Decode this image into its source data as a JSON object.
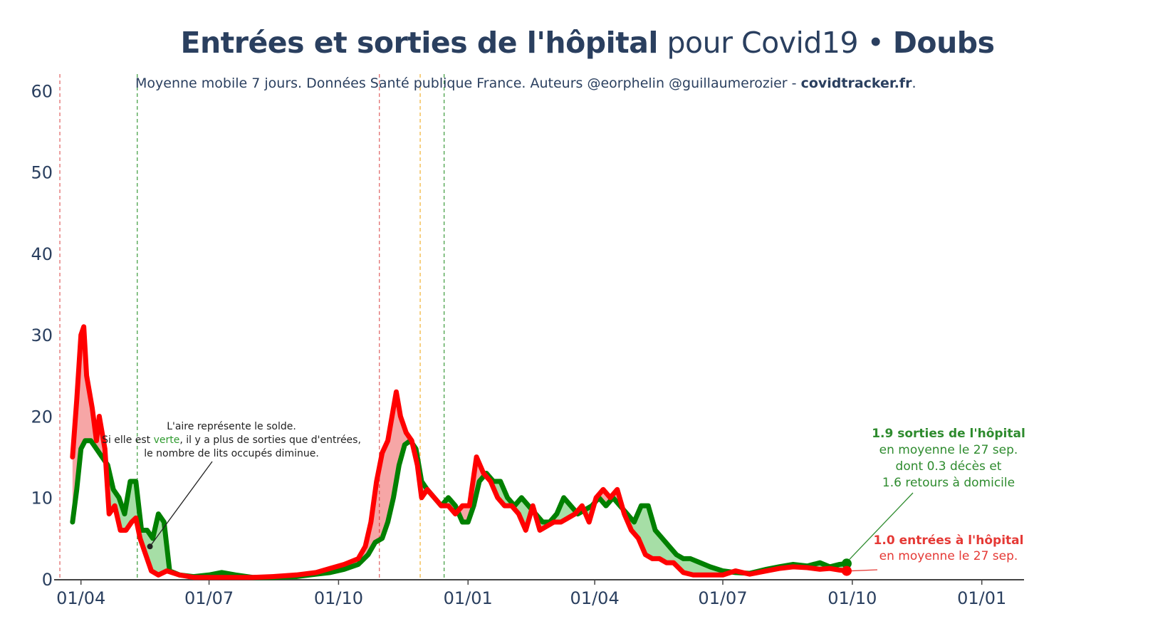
{
  "title": {
    "bold_part": "Entrées et sorties de l'hôpital",
    "light_part": "pour Covid19",
    "separator": "•",
    "place": "Doubs"
  },
  "subtitle": {
    "text": "Moyenne mobile 7 jours. Données Santé publique France. Auteurs @eorphelin @guillaumerozier - ",
    "link": "covidtracker.fr",
    "end": "."
  },
  "note": {
    "line1": "L'aire représente le solde.",
    "line2_a": "Si elle est ",
    "line2_green": "verte",
    "line2_b": ", il y a plus de sorties que d'entrées,",
    "line3": "le nombre de lits occupés diminue."
  },
  "annotation_sorties": {
    "bold": "1.9 sorties de l'hôpital",
    "line2": "en moyenne le 27 sep.",
    "line3": "dont 0.3 décès et",
    "line4": "1.6 retours à domicile"
  },
  "annotation_entrees": {
    "bold": "1.0 entrées à l'hôpital",
    "line2": "en moyenne le 27 sep."
  },
  "colors": {
    "sorties": "#008000",
    "entrees": "#ff0000",
    "fill_green": "rgba(0,160,0,0.35)",
    "fill_red": "rgba(230,0,0,0.35)",
    "text": "#2a3f5f",
    "vline_red": "#e06060",
    "vline_green": "#3a9a3a",
    "vline_orange": "#f0b030"
  },
  "chart_data": {
    "type": "line",
    "x_unit": "date",
    "y_range": [
      0,
      61
    ],
    "y_ticks": [
      0,
      10,
      20,
      30,
      40,
      50,
      60
    ],
    "x_range": [
      "2020-03-19",
      "2022-01-31"
    ],
    "x_ticks": [
      {
        "date": "2020-04-01",
        "label": "01/04"
      },
      {
        "date": "2020-07-01",
        "label": "01/07"
      },
      {
        "date": "2020-10-01",
        "label": "01/10"
      },
      {
        "date": "2021-01-01",
        "label": "01/01"
      },
      {
        "date": "2021-04-01",
        "label": "01/04"
      },
      {
        "date": "2021-07-01",
        "label": "01/07"
      },
      {
        "date": "2021-10-01",
        "label": "01/10"
      },
      {
        "date": "2022-01-01",
        "label": "01/01"
      }
    ],
    "vertical_lines": [
      {
        "date": "2020-03-17",
        "color": "red"
      },
      {
        "date": "2020-05-11",
        "color": "green"
      },
      {
        "date": "2020-10-30",
        "color": "red"
      },
      {
        "date": "2020-11-28",
        "color": "orange"
      },
      {
        "date": "2020-12-15",
        "color": "green"
      }
    ],
    "series": [
      {
        "key": "sorties",
        "points": [
          [
            "2020-03-26",
            7
          ],
          [
            "2020-03-29",
            11
          ],
          [
            "2020-04-01",
            16
          ],
          [
            "2020-04-04",
            17
          ],
          [
            "2020-04-08",
            17
          ],
          [
            "2020-04-12",
            16
          ],
          [
            "2020-04-16",
            15
          ],
          [
            "2020-04-20",
            14
          ],
          [
            "2020-04-24",
            11
          ],
          [
            "2020-04-28",
            10
          ],
          [
            "2020-05-02",
            8
          ],
          [
            "2020-05-06",
            12
          ],
          [
            "2020-05-10",
            12
          ],
          [
            "2020-05-14",
            6
          ],
          [
            "2020-05-18",
            6
          ],
          [
            "2020-05-22",
            5
          ],
          [
            "2020-05-26",
            8
          ],
          [
            "2020-05-30",
            7
          ],
          [
            "2020-06-03",
            1
          ],
          [
            "2020-06-10",
            0.5
          ],
          [
            "2020-06-20",
            0.3
          ],
          [
            "2020-07-01",
            0.5
          ],
          [
            "2020-07-10",
            0.8
          ],
          [
            "2020-07-20",
            0.5
          ],
          [
            "2020-08-01",
            0.2
          ],
          [
            "2020-08-15",
            0.2
          ],
          [
            "2020-09-01",
            0.3
          ],
          [
            "2020-09-15",
            0.6
          ],
          [
            "2020-09-25",
            0.8
          ],
          [
            "2020-10-05",
            1.2
          ],
          [
            "2020-10-15",
            1.8
          ],
          [
            "2020-10-22",
            3
          ],
          [
            "2020-10-27",
            4.5
          ],
          [
            "2020-11-01",
            5
          ],
          [
            "2020-11-05",
            7
          ],
          [
            "2020-11-09",
            10
          ],
          [
            "2020-11-13",
            14
          ],
          [
            "2020-11-17",
            16.5
          ],
          [
            "2020-11-21",
            17
          ],
          [
            "2020-11-25",
            16
          ],
          [
            "2020-11-29",
            12
          ],
          [
            "2020-12-03",
            11
          ],
          [
            "2020-12-08",
            10
          ],
          [
            "2020-12-13",
            9
          ],
          [
            "2020-12-18",
            10
          ],
          [
            "2020-12-23",
            9
          ],
          [
            "2020-12-28",
            7
          ],
          [
            "2021-01-01",
            7
          ],
          [
            "2021-01-05",
            9
          ],
          [
            "2021-01-09",
            12
          ],
          [
            "2021-01-14",
            13
          ],
          [
            "2021-01-19",
            12
          ],
          [
            "2021-01-24",
            12
          ],
          [
            "2021-01-29",
            10
          ],
          [
            "2021-02-03",
            9
          ],
          [
            "2021-02-08",
            10
          ],
          [
            "2021-02-13",
            9
          ],
          [
            "2021-02-18",
            8
          ],
          [
            "2021-02-23",
            7
          ],
          [
            "2021-02-28",
            7
          ],
          [
            "2021-03-05",
            8
          ],
          [
            "2021-03-10",
            10
          ],
          [
            "2021-03-15",
            9
          ],
          [
            "2021-03-20",
            8
          ],
          [
            "2021-03-25",
            8.5
          ],
          [
            "2021-03-30",
            9
          ],
          [
            "2021-04-04",
            10
          ],
          [
            "2021-04-09",
            9
          ],
          [
            "2021-04-14",
            10
          ],
          [
            "2021-04-19",
            9
          ],
          [
            "2021-04-24",
            8
          ],
          [
            "2021-04-29",
            7
          ],
          [
            "2021-05-04",
            9
          ],
          [
            "2021-05-09",
            9
          ],
          [
            "2021-05-14",
            6
          ],
          [
            "2021-05-19",
            5
          ],
          [
            "2021-05-24",
            4
          ],
          [
            "2021-05-29",
            3
          ],
          [
            "2021-06-03",
            2.5
          ],
          [
            "2021-06-08",
            2.5
          ],
          [
            "2021-06-15",
            2
          ],
          [
            "2021-06-22",
            1.5
          ],
          [
            "2021-07-01",
            1
          ],
          [
            "2021-07-10",
            0.8
          ],
          [
            "2021-07-20",
            0.7
          ],
          [
            "2021-08-01",
            1.2
          ],
          [
            "2021-08-10",
            1.5
          ],
          [
            "2021-08-20",
            1.8
          ],
          [
            "2021-08-30",
            1.6
          ],
          [
            "2021-09-08",
            2
          ],
          [
            "2021-09-15",
            1.5
          ],
          [
            "2021-09-22",
            1.8
          ],
          [
            "2021-09-27",
            1.9
          ]
        ]
      },
      {
        "key": "entrees",
        "points": [
          [
            "2020-03-26",
            15
          ],
          [
            "2020-03-29",
            22
          ],
          [
            "2020-04-01",
            30
          ],
          [
            "2020-04-03",
            31
          ],
          [
            "2020-04-05",
            25
          ],
          [
            "2020-04-09",
            21
          ],
          [
            "2020-04-12",
            17
          ],
          [
            "2020-04-14",
            20
          ],
          [
            "2020-04-18",
            16
          ],
          [
            "2020-04-21",
            8
          ],
          [
            "2020-04-25",
            9
          ],
          [
            "2020-04-29",
            6
          ],
          [
            "2020-05-03",
            6
          ],
          [
            "2020-05-07",
            7
          ],
          [
            "2020-05-10",
            7.5
          ],
          [
            "2020-05-13",
            5
          ],
          [
            "2020-05-17",
            3
          ],
          [
            "2020-05-21",
            1
          ],
          [
            "2020-05-26",
            0.5
          ],
          [
            "2020-06-01",
            1
          ],
          [
            "2020-06-10",
            0.5
          ],
          [
            "2020-06-20",
            0.2
          ],
          [
            "2020-07-01",
            0.2
          ],
          [
            "2020-07-15",
            0.2
          ],
          [
            "2020-08-01",
            0.2
          ],
          [
            "2020-08-15",
            0.3
          ],
          [
            "2020-09-01",
            0.5
          ],
          [
            "2020-09-15",
            0.8
          ],
          [
            "2020-09-25",
            1.3
          ],
          [
            "2020-10-05",
            1.8
          ],
          [
            "2020-10-15",
            2.5
          ],
          [
            "2020-10-20",
            4
          ],
          [
            "2020-10-24",
            7
          ],
          [
            "2020-10-28",
            12
          ],
          [
            "2020-11-01",
            15.5
          ],
          [
            "2020-11-05",
            17
          ],
          [
            "2020-11-08",
            20
          ],
          [
            "2020-11-11",
            23
          ],
          [
            "2020-11-14",
            20
          ],
          [
            "2020-11-18",
            18
          ],
          [
            "2020-11-22",
            17
          ],
          [
            "2020-11-26",
            14
          ],
          [
            "2020-11-29",
            10
          ],
          [
            "2020-12-03",
            11
          ],
          [
            "2020-12-08",
            10
          ],
          [
            "2020-12-13",
            9
          ],
          [
            "2020-12-18",
            9
          ],
          [
            "2020-12-23",
            8
          ],
          [
            "2020-12-28",
            9
          ],
          [
            "2021-01-02",
            9
          ],
          [
            "2021-01-07",
            15
          ],
          [
            "2021-01-12",
            13
          ],
          [
            "2021-01-17",
            12
          ],
          [
            "2021-01-22",
            10
          ],
          [
            "2021-01-27",
            9
          ],
          [
            "2021-02-01",
            9
          ],
          [
            "2021-02-06",
            8
          ],
          [
            "2021-02-11",
            6
          ],
          [
            "2021-02-16",
            9
          ],
          [
            "2021-02-21",
            6
          ],
          [
            "2021-02-26",
            6.5
          ],
          [
            "2021-03-03",
            7
          ],
          [
            "2021-03-08",
            7
          ],
          [
            "2021-03-13",
            7.5
          ],
          [
            "2021-03-18",
            8
          ],
          [
            "2021-03-23",
            9
          ],
          [
            "2021-03-28",
            7
          ],
          [
            "2021-04-02",
            10
          ],
          [
            "2021-04-07",
            11
          ],
          [
            "2021-04-12",
            10
          ],
          [
            "2021-04-17",
            11
          ],
          [
            "2021-04-22",
            8
          ],
          [
            "2021-04-27",
            6
          ],
          [
            "2021-05-02",
            5
          ],
          [
            "2021-05-07",
            3
          ],
          [
            "2021-05-12",
            2.5
          ],
          [
            "2021-05-17",
            2.5
          ],
          [
            "2021-05-22",
            2
          ],
          [
            "2021-05-27",
            2
          ],
          [
            "2021-06-03",
            0.8
          ],
          [
            "2021-06-10",
            0.5
          ],
          [
            "2021-06-20",
            0.5
          ],
          [
            "2021-07-01",
            0.5
          ],
          [
            "2021-07-10",
            1
          ],
          [
            "2021-07-20",
            0.6
          ],
          [
            "2021-08-01",
            1
          ],
          [
            "2021-08-10",
            1.3
          ],
          [
            "2021-08-20",
            1.5
          ],
          [
            "2021-08-30",
            1.4
          ],
          [
            "2021-09-08",
            1.2
          ],
          [
            "2021-09-15",
            1.3
          ],
          [
            "2021-09-22",
            1.1
          ],
          [
            "2021-09-27",
            1.0
          ]
        ]
      }
    ],
    "annotation_point": {
      "date": "2020-05-20",
      "value": 4
    }
  }
}
